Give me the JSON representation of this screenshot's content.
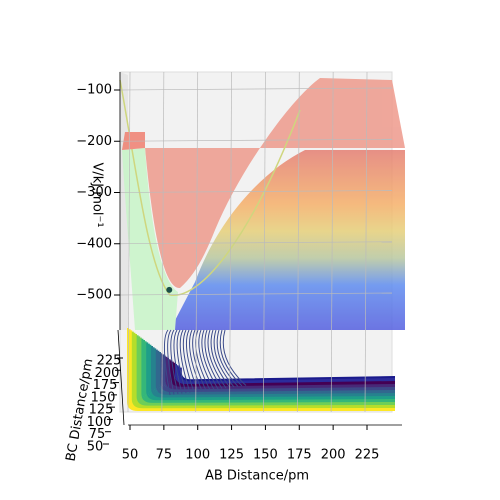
{
  "chart_data": {
    "type": "surface3d",
    "xlabel": "AB Distance/pm",
    "ylabel": "BC Distance/pm",
    "zlabel": "V/kJ.mol⁻¹",
    "xticks": [
      50,
      75,
      100,
      125,
      150,
      175,
      200,
      225
    ],
    "yticks": [
      50,
      75,
      100,
      125,
      150,
      175,
      200,
      225
    ],
    "zticks": [
      {
        "value": -100,
        "label": "−100"
      },
      {
        "value": -200,
        "label": "−200"
      },
      {
        "value": -300,
        "label": "−300"
      },
      {
        "value": -400,
        "label": "−400"
      },
      {
        "value": -500,
        "label": "−500"
      }
    ],
    "marker": {
      "x": 79,
      "z": -490,
      "color": "#1b4f4a"
    }
  }
}
